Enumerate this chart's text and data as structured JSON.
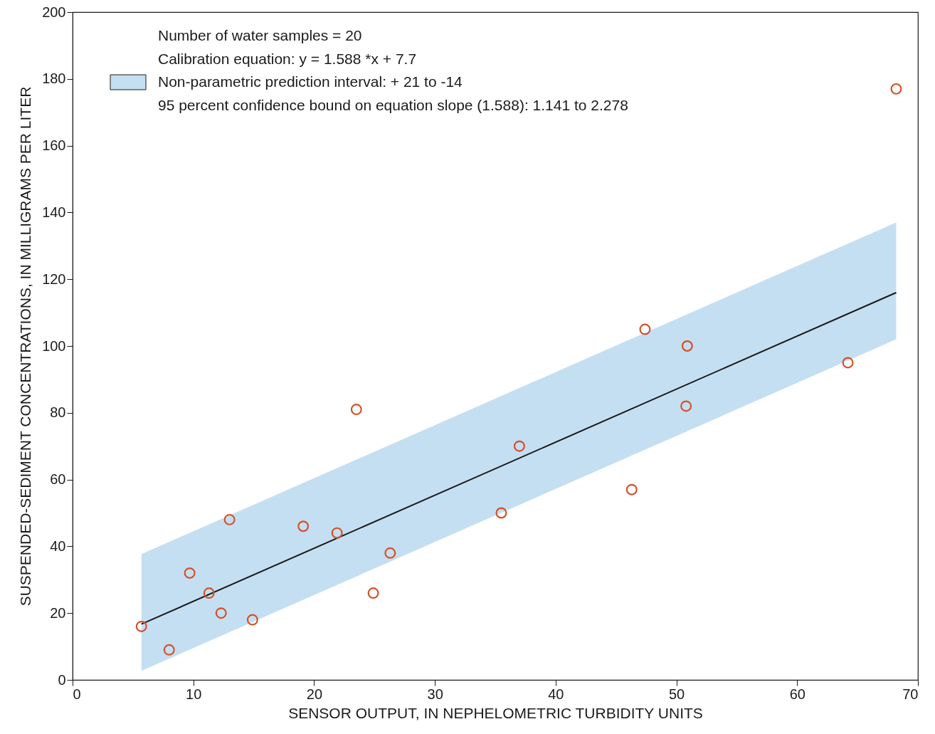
{
  "chart_data": {
    "type": "scatter",
    "xlabel": "SENSOR OUTPUT, IN NEPHELOMETRIC TURBIDITY UNITS",
    "ylabel": "SUSPENDED-SEDIMENT CONCENTRATIONS, IN MILLIGRAMS PER LITER",
    "annotations": [
      "Number of water samples = 20",
      "Calibration equation: y = 1.588 *x +   7.7",
      "95 percent confidence bound on equation slope (1.588): 1.141 to 2.278"
    ],
    "x": [
      5.7,
      8.0,
      9.7,
      11.3,
      12.3,
      13.0,
      14.9,
      19.1,
      21.9,
      23.5,
      24.9,
      26.3,
      35.5,
      37.0,
      46.3,
      47.4,
      50.9,
      50.8,
      64.2,
      68.2
    ],
    "series": [
      {
        "color": "#d4522a",
        "values": [
          16,
          9,
          32,
          26,
          20,
          48,
          18,
          46,
          44,
          81,
          26,
          38,
          50,
          70,
          57,
          105,
          100,
          82,
          95,
          177
        ]
      },
      {
        "type": "line",
        "marker": "none",
        "name": "Non-parametric prediction interval: + 21 to -14",
        "color": "#1a1a1a",
        "x": [
          5.7,
          68.2
        ],
        "values": [
          16.7,
          116.0
        ],
        "lower": [
          2.7,
          102
        ],
        "upper": [
          37.7,
          137
        ]
      }
    ],
    "xlim": [
      0,
      70
    ],
    "xticks": [
      0,
      10,
      20,
      30,
      40,
      50,
      60,
      70
    ],
    "ylim": [
      0,
      200
    ],
    "yticks": [
      0,
      20,
      40,
      60,
      80,
      100,
      120,
      140,
      160,
      180,
      200
    ],
    "grid": false,
    "legend": "top left",
    "marker": "circle",
    "line_style": "solid"
  }
}
